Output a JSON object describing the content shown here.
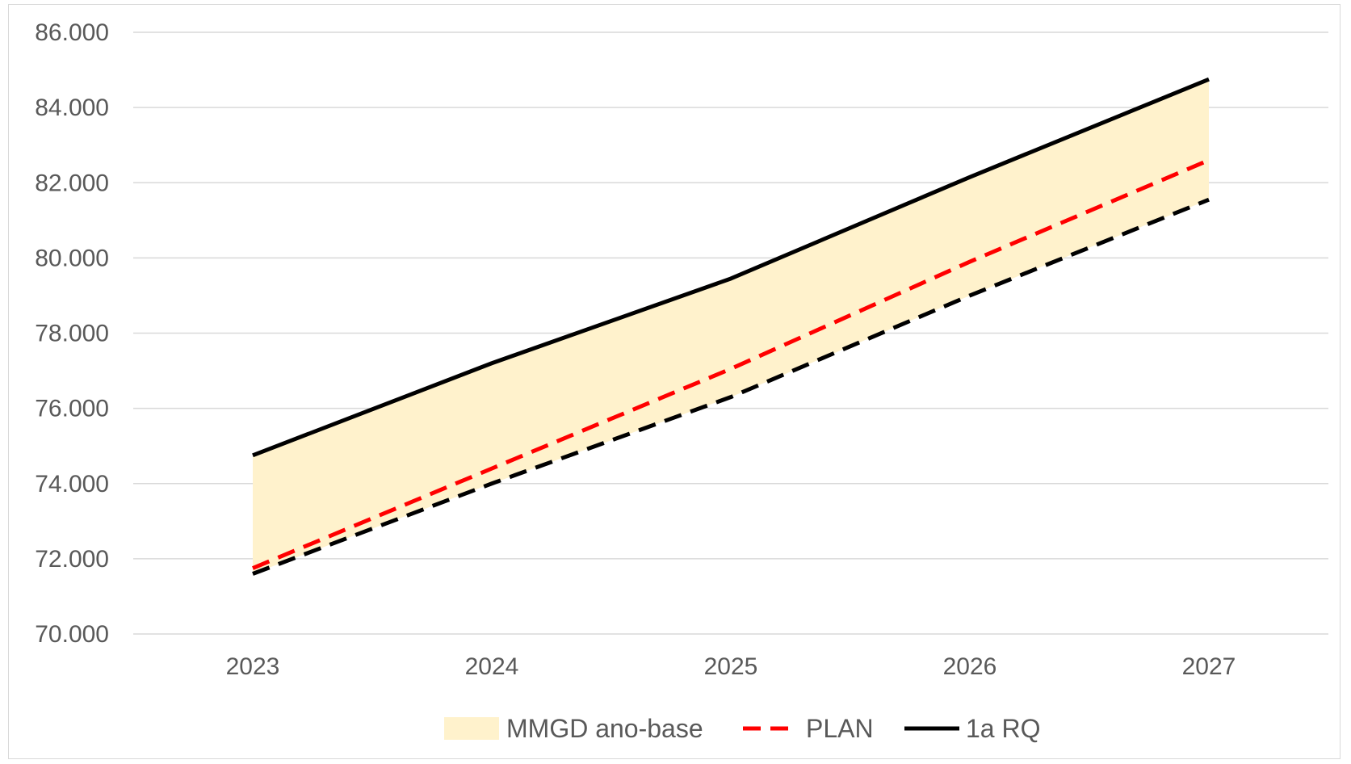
{
  "chart_data": {
    "type": "line",
    "title": "",
    "xlabel": "",
    "ylabel": "",
    "categories": [
      "2023",
      "2024",
      "2025",
      "2026",
      "2027"
    ],
    "ylim": [
      70000,
      86000
    ],
    "yticks": [
      70000,
      72000,
      74000,
      76000,
      78000,
      80000,
      82000,
      84000,
      86000
    ],
    "ytick_labels": [
      "70.000",
      "72.000",
      "74.000",
      "76.000",
      "78.000",
      "80.000",
      "82.000",
      "84.000",
      "86.000"
    ],
    "grid": true,
    "legend_position": "bottom",
    "series": [
      {
        "name": "MMGD ano-base",
        "kind": "band",
        "color": "#fff2cc",
        "lower": [
          71600,
          74000,
          76300,
          79000,
          81550
        ],
        "upper": [
          74750,
          77200,
          79450,
          82150,
          84750
        ]
      },
      {
        "name": "PLAN",
        "kind": "line",
        "style": "dashed",
        "color": "#ff0000",
        "values": [
          71750,
          74400,
          77050,
          79900,
          82600
        ]
      },
      {
        "name": "1a RQ",
        "kind": "line",
        "style": "solid",
        "color": "#000000",
        "values": [
          74750,
          77200,
          79450,
          82150,
          84750
        ]
      },
      {
        "kind": "line",
        "style": "dashed",
        "color": "#000000",
        "values": [
          71600,
          74000,
          76300,
          79000,
          81550
        ]
      }
    ]
  }
}
